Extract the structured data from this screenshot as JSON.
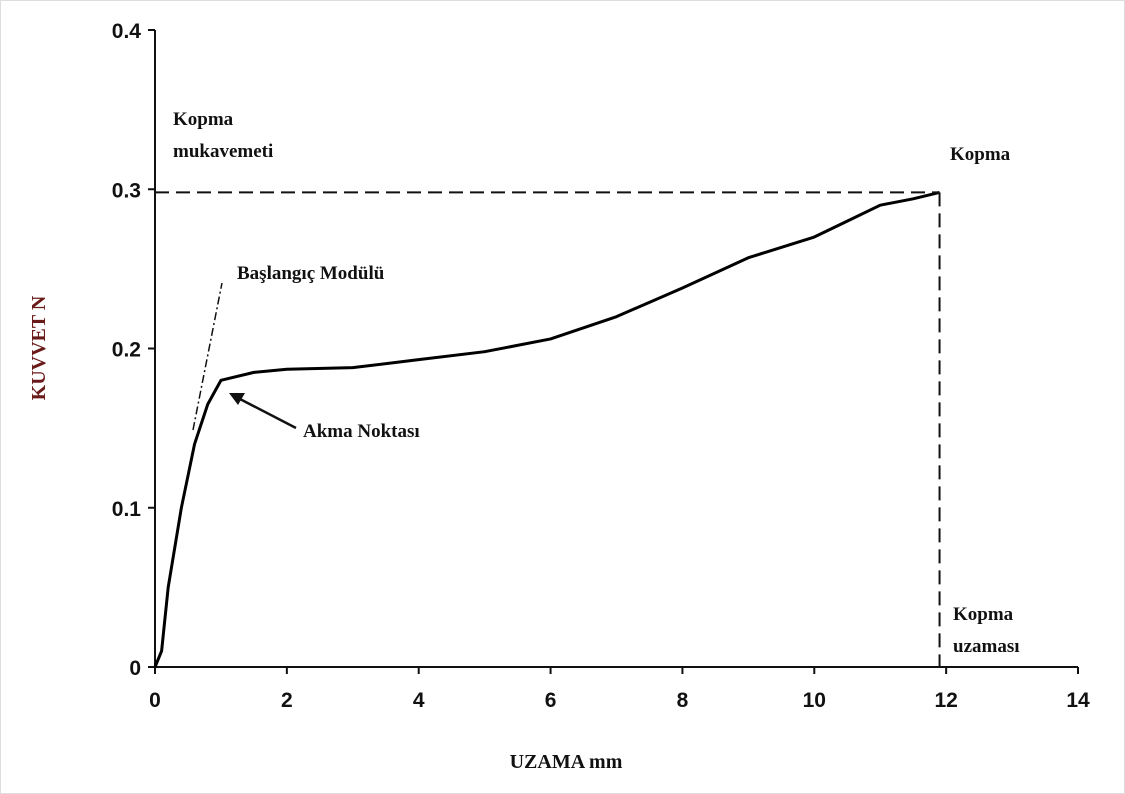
{
  "chart_data": {
    "type": "line",
    "x_label": "UZAMA mm",
    "y_label": "KUVVET  N",
    "x": [
      0,
      0.1,
      0.2,
      0.4,
      0.6,
      0.8,
      1.0,
      1.5,
      2,
      3,
      4,
      5,
      6,
      7,
      8,
      9,
      10,
      10.5,
      11,
      11.5,
      11.9
    ],
    "series": [
      {
        "color": "#000000",
        "values": [
          0,
          0.01,
          0.05,
          0.1,
          0.14,
          0.165,
          0.18,
          0.185,
          0.187,
          0.188,
          0.193,
          0.198,
          0.206,
          0.22,
          0.238,
          0.257,
          0.27,
          0.28,
          0.29,
          0.294,
          0.298
        ]
      }
    ],
    "xlim": [
      0,
      14
    ],
    "xticks": [
      0,
      2,
      4,
      6,
      8,
      10,
      12,
      14
    ],
    "ylim": [
      0,
      0.4
    ],
    "yticks": [
      0,
      0.1,
      0.2,
      0.3,
      0.4
    ],
    "grid": false,
    "annotations": [
      [
        "Kopma",
        "mukavemeti"
      ],
      [
        "Kopma"
      ],
      [
        "Başlangıç Modülü"
      ],
      [
        "Akma Noktası"
      ],
      [
        "Kopma",
        "uzaması"
      ]
    ]
  }
}
